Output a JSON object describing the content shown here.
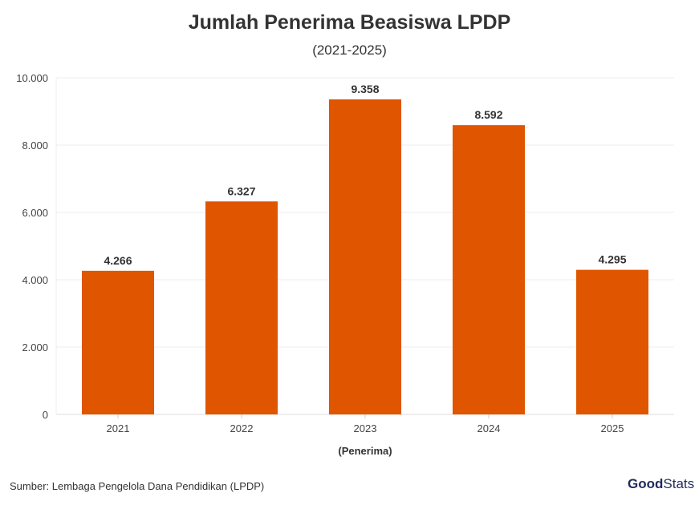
{
  "chart_data": {
    "type": "bar",
    "title": "Jumlah Penerima Beasiswa LPDP",
    "subtitle": "(2021-2025)",
    "categories": [
      "2021",
      "2022",
      "2023",
      "2024",
      "2025"
    ],
    "values": [
      4266,
      6327,
      9358,
      8592,
      4295
    ],
    "data_labels": [
      "4.266",
      "6.327",
      "9.358",
      "8.592",
      "4.295"
    ],
    "xlabel": "(Penerima)",
    "ylabel": "",
    "ylim": [
      0,
      10000
    ],
    "yticks": [
      0,
      2000,
      4000,
      6000,
      8000,
      10000
    ],
    "ytick_labels": [
      "0",
      "2.000",
      "4.000",
      "6.000",
      "8.000",
      "10.000"
    ],
    "grid": true,
    "bar_color": "#e05500"
  },
  "source": "Sumber: Lembaga Pengelola Dana Pendidikan (LPDP)",
  "logo": {
    "part1": "Good",
    "part2": "Stats"
  }
}
